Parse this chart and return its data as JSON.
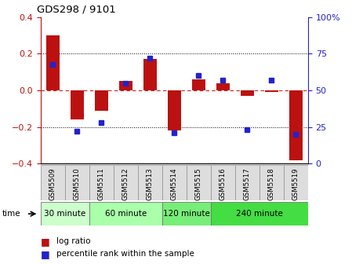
{
  "title": "GDS298 / 9101",
  "samples": [
    "GSM5509",
    "GSM5510",
    "GSM5511",
    "GSM5512",
    "GSM5513",
    "GSM5514",
    "GSM5515",
    "GSM5516",
    "GSM5517",
    "GSM5518",
    "GSM5519"
  ],
  "log_ratio": [
    0.3,
    -0.16,
    -0.11,
    0.05,
    0.17,
    -0.22,
    0.06,
    0.04,
    -0.03,
    -0.01,
    -0.38
  ],
  "percentile_rank": [
    68,
    22,
    28,
    55,
    72,
    21,
    60,
    57,
    23,
    57,
    20
  ],
  "groups": [
    {
      "label": "30 minute",
      "start": 0,
      "end": 1,
      "color": "#ccffcc"
    },
    {
      "label": "60 minute",
      "start": 2,
      "end": 4,
      "color": "#aaffaa"
    },
    {
      "label": "120 minute",
      "start": 5,
      "end": 6,
      "color": "#77ee77"
    },
    {
      "label": "240 minute",
      "start": 7,
      "end": 10,
      "color": "#33dd33"
    }
  ],
  "ylim_left": [
    -0.4,
    0.4
  ],
  "ylim_right": [
    0,
    100
  ],
  "yticks_left": [
    -0.4,
    -0.2,
    0.0,
    0.2,
    0.4
  ],
  "yticks_right": [
    0,
    25,
    50,
    75,
    100
  ],
  "bar_color": "#bb1111",
  "dot_color": "#2222cc",
  "hline0_color": "#cc2222",
  "dot_line_color": "#000000",
  "background_color": "#ffffff",
  "figsize": [
    4.49,
    3.36
  ],
  "dpi": 100
}
